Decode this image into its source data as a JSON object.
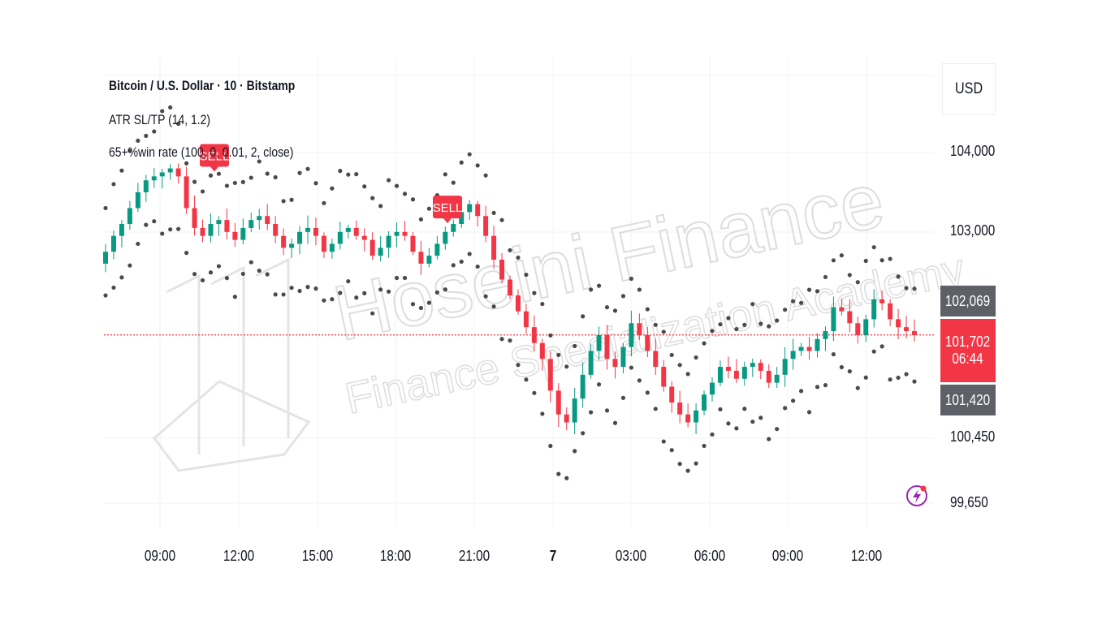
{
  "header": {
    "title": "Bitcoin / U.S. Dollar · 10 · Bitstamp",
    "indicator1": "ATR SL/TP (14, 1.2)",
    "indicator2": "65+%win rate (100, 0, 0.01, 2, close)"
  },
  "currency": "USD",
  "colors": {
    "up": "#089981",
    "down": "#f23645",
    "dots": "#4a4a4a",
    "current_price_line": "#f23645",
    "label_gray": "#5d6066",
    "grid": "#f0f3fa",
    "watermark": "#d9d9d9"
  },
  "price_scale": {
    "labels": [
      "104,000",
      "103,000",
      "100,450",
      "99,650"
    ],
    "high_tag": "102,069",
    "current_tag": "101,702",
    "countdown": "06:44",
    "low_tag": "101,420"
  },
  "time_axis": [
    "09:00",
    "12:00",
    "15:00",
    "18:00",
    "21:00",
    "7",
    "03:00",
    "06:00",
    "09:00",
    "12:00"
  ],
  "signals": [
    {
      "label": "SELL",
      "time": "10:40",
      "price": 103800
    },
    {
      "label": "SELL",
      "time": "19:30",
      "price": 103150
    }
  ],
  "watermark": {
    "line1": "Hoseini Finance",
    "line2": "Finance Specialization Academy"
  },
  "icons": {
    "logo": "lightning-bolt-icon"
  },
  "chart_data": {
    "type": "candlestick",
    "title": "Bitcoin / U.S. Dollar · 10 · Bitstamp",
    "symbol": "BTCUSD",
    "timeframe": "10",
    "exchange": "Bitstamp",
    "y_unit": "USD",
    "ylim": [
      99500,
      104900
    ],
    "x_ticks": [
      "09:00",
      "12:00",
      "15:00",
      "18:00",
      "21:00",
      "7",
      "03:00",
      "06:00",
      "09:00",
      "12:00"
    ],
    "current_price": 101702,
    "grid": true,
    "close_series": [
      102750,
      102950,
      103100,
      103300,
      103500,
      103650,
      103700,
      103750,
      103800,
      103700,
      103300,
      103050,
      102950,
      103100,
      103150,
      103000,
      102900,
      103050,
      103150,
      103200,
      103100,
      102950,
      102800,
      102850,
      103000,
      103050,
      102950,
      102750,
      102850,
      103000,
      103050,
      102950,
      102900,
      102700,
      102800,
      102950,
      103000,
      102950,
      102750,
      102600,
      102700,
      102850,
      103000,
      103100,
      103250,
      103350,
      103200,
      102950,
      102650,
      102400,
      102200,
      102000,
      101800,
      101600,
      101400,
      101000,
      100700,
      100600,
      100900,
      101200,
      101500,
      101700,
      101400,
      101300,
      101550,
      101850,
      101700,
      101500,
      101300,
      101050,
      100850,
      100700,
      100600,
      100750,
      100950,
      101100,
      101300,
      101250,
      101150,
      101300,
      101350,
      101250,
      101100,
      101200,
      101400,
      101500,
      101550,
      101500,
      101650,
      101750,
      102050,
      102000,
      101850,
      101700,
      101900,
      102150,
      102100,
      101900,
      101800,
      101750,
      101700
    ]
  }
}
